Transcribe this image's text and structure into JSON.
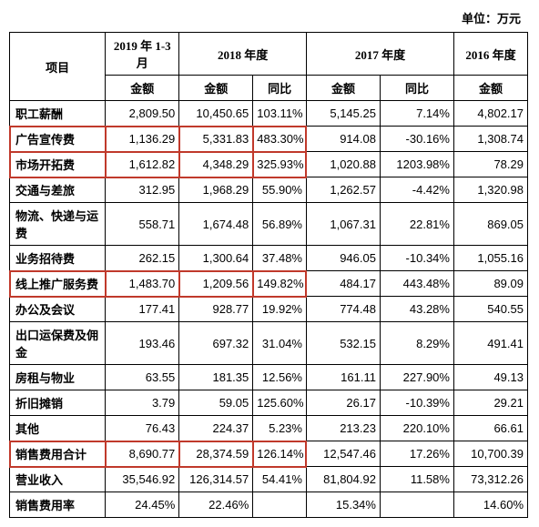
{
  "unit_text": "单位：万元",
  "header": {
    "item": "项目",
    "q1_2019": "2019 年 1-3 月",
    "y2018": "2018 年度",
    "y2017": "2017 年度",
    "y2016": "2016 年度",
    "amount": "金额",
    "yoy": "同比"
  },
  "columns": [
    "label",
    "q1_2019_amt",
    "y2018_amt",
    "y2018_yoy",
    "y2017_amt",
    "y2017_yoy",
    "y2016_amt"
  ],
  "rows": [
    {
      "label": "职工薪酬",
      "q1_2019_amt": "2,809.50",
      "y2018_amt": "10,450.65",
      "y2018_yoy": "103.11%",
      "y2017_amt": "5,145.25",
      "y2017_yoy": "7.14%",
      "y2016_amt": "4,802.17",
      "hl": false
    },
    {
      "label": "广告宣传费",
      "q1_2019_amt": "1,136.29",
      "y2018_amt": "5,331.83",
      "y2018_yoy": "483.30%",
      "y2017_amt": "914.08",
      "y2017_yoy": "-30.16%",
      "y2016_amt": "1,308.74",
      "hl": true
    },
    {
      "label": "市场开拓费",
      "q1_2019_amt": "1,612.82",
      "y2018_amt": "4,348.29",
      "y2018_yoy": "325.93%",
      "y2017_amt": "1,020.88",
      "y2017_yoy": "1203.98%",
      "y2016_amt": "78.29",
      "hl": true
    },
    {
      "label": "交通与差旅",
      "q1_2019_amt": "312.95",
      "y2018_amt": "1,968.29",
      "y2018_yoy": "55.90%",
      "y2017_amt": "1,262.57",
      "y2017_yoy": "-4.42%",
      "y2016_amt": "1,320.98",
      "hl": false
    },
    {
      "label": "物流、快递与运费",
      "q1_2019_amt": "558.71",
      "y2018_amt": "1,674.48",
      "y2018_yoy": "56.89%",
      "y2017_amt": "1,067.31",
      "y2017_yoy": "22.81%",
      "y2016_amt": "869.05",
      "hl": false
    },
    {
      "label": "业务招待费",
      "q1_2019_amt": "262.15",
      "y2018_amt": "1,300.64",
      "y2018_yoy": "37.48%",
      "y2017_amt": "946.05",
      "y2017_yoy": "-10.34%",
      "y2016_amt": "1,055.16",
      "hl": false
    },
    {
      "label": "线上推广服务费",
      "q1_2019_amt": "1,483.70",
      "y2018_amt": "1,209.56",
      "y2018_yoy": "149.82%",
      "y2017_amt": "484.17",
      "y2017_yoy": "443.48%",
      "y2016_amt": "89.09",
      "hl": true
    },
    {
      "label": "办公及会议",
      "q1_2019_amt": "177.41",
      "y2018_amt": "928.77",
      "y2018_yoy": "19.92%",
      "y2017_amt": "774.48",
      "y2017_yoy": "43.28%",
      "y2016_amt": "540.55",
      "hl": false
    },
    {
      "label": "出口运保费及佣金",
      "q1_2019_amt": "193.46",
      "y2018_amt": "697.32",
      "y2018_yoy": "31.04%",
      "y2017_amt": "532.15",
      "y2017_yoy": "8.29%",
      "y2016_amt": "491.41",
      "hl": false
    },
    {
      "label": "房租与物业",
      "q1_2019_amt": "63.55",
      "y2018_amt": "181.35",
      "y2018_yoy": "12.56%",
      "y2017_amt": "161.11",
      "y2017_yoy": "227.90%",
      "y2016_amt": "49.13",
      "hl": false
    },
    {
      "label": "折旧摊销",
      "q1_2019_amt": "3.79",
      "y2018_amt": "59.05",
      "y2018_yoy": "125.60%",
      "y2017_amt": "26.17",
      "y2017_yoy": "-10.39%",
      "y2016_amt": "29.21",
      "hl": false
    },
    {
      "label": "其他",
      "q1_2019_amt": "76.43",
      "y2018_amt": "224.37",
      "y2018_yoy": "5.23%",
      "y2017_amt": "213.23",
      "y2017_yoy": "220.10%",
      "y2016_amt": "66.61",
      "hl": false
    },
    {
      "label": "销售费用合计",
      "q1_2019_amt": "8,690.77",
      "y2018_amt": "28,374.59",
      "y2018_yoy": "126.14%",
      "y2017_amt": "12,547.46",
      "y2017_yoy": "17.26%",
      "y2016_amt": "10,700.39",
      "hl": true
    },
    {
      "label": "营业收入",
      "q1_2019_amt": "35,546.92",
      "y2018_amt": "126,314.57",
      "y2018_yoy": "54.41%",
      "y2017_amt": "81,804.92",
      "y2017_yoy": "11.58%",
      "y2016_amt": "73,312.26",
      "hl": false
    },
    {
      "label": "销售费用率",
      "q1_2019_amt": "24.45%",
      "y2018_amt": "22.46%",
      "y2018_yoy": "",
      "y2017_amt": "15.34%",
      "y2017_yoy": "",
      "y2016_amt": "14.60%",
      "hl": false
    }
  ],
  "highlight_color": "#c0392b",
  "text_color": "#000000",
  "background_color": "#ffffff"
}
